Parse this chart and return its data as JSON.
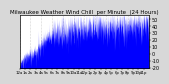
{
  "title": "Milwaukee Weather Wind Chill  per Minute  (24 Hours)",
  "title_fontsize": 4.0,
  "bg_color": "#d8d8d8",
  "plot_bg_color": "#ffffff",
  "line_color": "#0000ff",
  "fill_color": "#0000ff",
  "ylim": [
    -20,
    55
  ],
  "ylabel_fontsize": 3.5,
  "xlabel_fontsize": 2.8,
  "num_points": 1440,
  "seed": 42,
  "grid_color": "#aaaaaa",
  "grid_style": ":",
  "yticks": [
    -20,
    -10,
    0,
    10,
    20,
    30,
    40,
    50
  ],
  "num_vgrid": 12
}
